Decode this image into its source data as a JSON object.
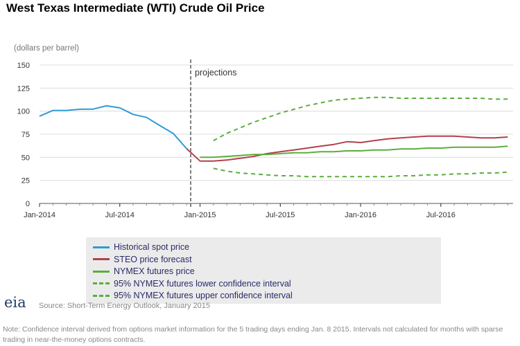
{
  "chart_data": {
    "type": "line",
    "title": "West Texas Intermediate (WTI) Crude Oil Price",
    "units": "(dollars per barrel)",
    "ylim": [
      0,
      150
    ],
    "yticks": [
      0,
      25,
      50,
      75,
      100,
      125,
      150
    ],
    "x_tick_labels": [
      "Jan-2014",
      "Jul-2014",
      "Jan-2015",
      "Jul-2015",
      "Jan-2016",
      "Jul-2016"
    ],
    "x_tick_dates": [
      "2014-01",
      "2014-07",
      "2015-01",
      "2015-07",
      "2016-01",
      "2016-07"
    ],
    "xlim": [
      "2014-01",
      "2016-12"
    ],
    "projection_marker": {
      "date": "2014-12",
      "label": "projections"
    },
    "series": [
      {
        "name": "Historical spot price",
        "style": "solid",
        "color": "#2e9bd6",
        "x": [
          "2014-01",
          "2014-02",
          "2014-03",
          "2014-04",
          "2014-05",
          "2014-06",
          "2014-07",
          "2014-08",
          "2014-09",
          "2014-10",
          "2014-11",
          "2014-12"
        ],
        "values": [
          94.6,
          100.8,
          100.8,
          102.1,
          102.2,
          105.8,
          103.6,
          96.5,
          93.2,
          84.4,
          75.8,
          59.3
        ]
      },
      {
        "name": "STEO price forecast",
        "style": "solid",
        "color": "#b3404a",
        "x": [
          "2014-12",
          "2015-01",
          "2015-02",
          "2015-03",
          "2015-04",
          "2015-05",
          "2015-06",
          "2015-07",
          "2015-08",
          "2015-09",
          "2015-10",
          "2015-11",
          "2015-12",
          "2016-01",
          "2016-02",
          "2016-03",
          "2016-04",
          "2016-05",
          "2016-06",
          "2016-07",
          "2016-08",
          "2016-09",
          "2016-10",
          "2016-11",
          "2016-12"
        ],
        "values": [
          59.3,
          46,
          46,
          47,
          49,
          51,
          54,
          56,
          58,
          60,
          62,
          64,
          67,
          66,
          68,
          70,
          71,
          72,
          73,
          73,
          73,
          72,
          71,
          71,
          72
        ]
      },
      {
        "name": "NYMEX futures price",
        "style": "solid",
        "color": "#5aae3c",
        "x": [
          "2015-01",
          "2015-02",
          "2015-03",
          "2015-04",
          "2015-05",
          "2015-06",
          "2015-07",
          "2015-08",
          "2015-09",
          "2015-10",
          "2015-11",
          "2015-12",
          "2016-01",
          "2016-02",
          "2016-03",
          "2016-04",
          "2016-05",
          "2016-06",
          "2016-07",
          "2016-08",
          "2016-09",
          "2016-10",
          "2016-11",
          "2016-12"
        ],
        "values": [
          50,
          50,
          51,
          52,
          53,
          53,
          54,
          55,
          55,
          56,
          56,
          57,
          57,
          58,
          58,
          59,
          59,
          60,
          60,
          61,
          61,
          61,
          61,
          62
        ]
      },
      {
        "name": "95% NYMEX futures lower confidence interval",
        "style": "dashed",
        "color": "#5aae3c",
        "x": [
          "2015-02",
          "2015-03",
          "2015-04",
          "2015-05",
          "2015-06",
          "2015-07",
          "2015-08",
          "2015-09",
          "2015-10",
          "2015-11",
          "2015-12",
          "2016-01",
          "2016-02",
          "2016-03",
          "2016-04",
          "2016-05",
          "2016-06",
          "2016-07",
          "2016-08",
          "2016-09",
          "2016-10",
          "2016-11",
          "2016-12"
        ],
        "values": [
          38,
          35,
          33,
          32,
          31,
          30,
          30,
          29,
          29,
          29,
          29,
          29,
          29,
          29,
          30,
          30,
          31,
          31,
          32,
          32,
          33,
          33,
          34
        ]
      },
      {
        "name": "95% NYMEX futures upper confidence interval",
        "style": "dashed",
        "color": "#5aae3c",
        "x": [
          "2015-02",
          "2015-03",
          "2015-04",
          "2015-05",
          "2015-06",
          "2015-07",
          "2015-08",
          "2015-09",
          "2015-10",
          "2015-11",
          "2015-12",
          "2016-01",
          "2016-02",
          "2016-03",
          "2016-04",
          "2016-05",
          "2016-06",
          "2016-07",
          "2016-08",
          "2016-09",
          "2016-10",
          "2016-11",
          "2016-12"
        ],
        "values": [
          68,
          76,
          82,
          88,
          93,
          98,
          102,
          106,
          109,
          112,
          113,
          114,
          115,
          115,
          114,
          114,
          114,
          114,
          114,
          114,
          114,
          113,
          113
        ]
      }
    ],
    "grid": "horizontal",
    "legend_position": "bottom"
  },
  "footer": {
    "logo": "eia",
    "source": "Source: Short-Term Energy Outlook, January 2015",
    "note": "Note: Confidence interval derived from options market information for the 5 trading days ending Jan. 8 2015. Intervals not calculated for months with sparse trading in near-the-money options contracts."
  }
}
